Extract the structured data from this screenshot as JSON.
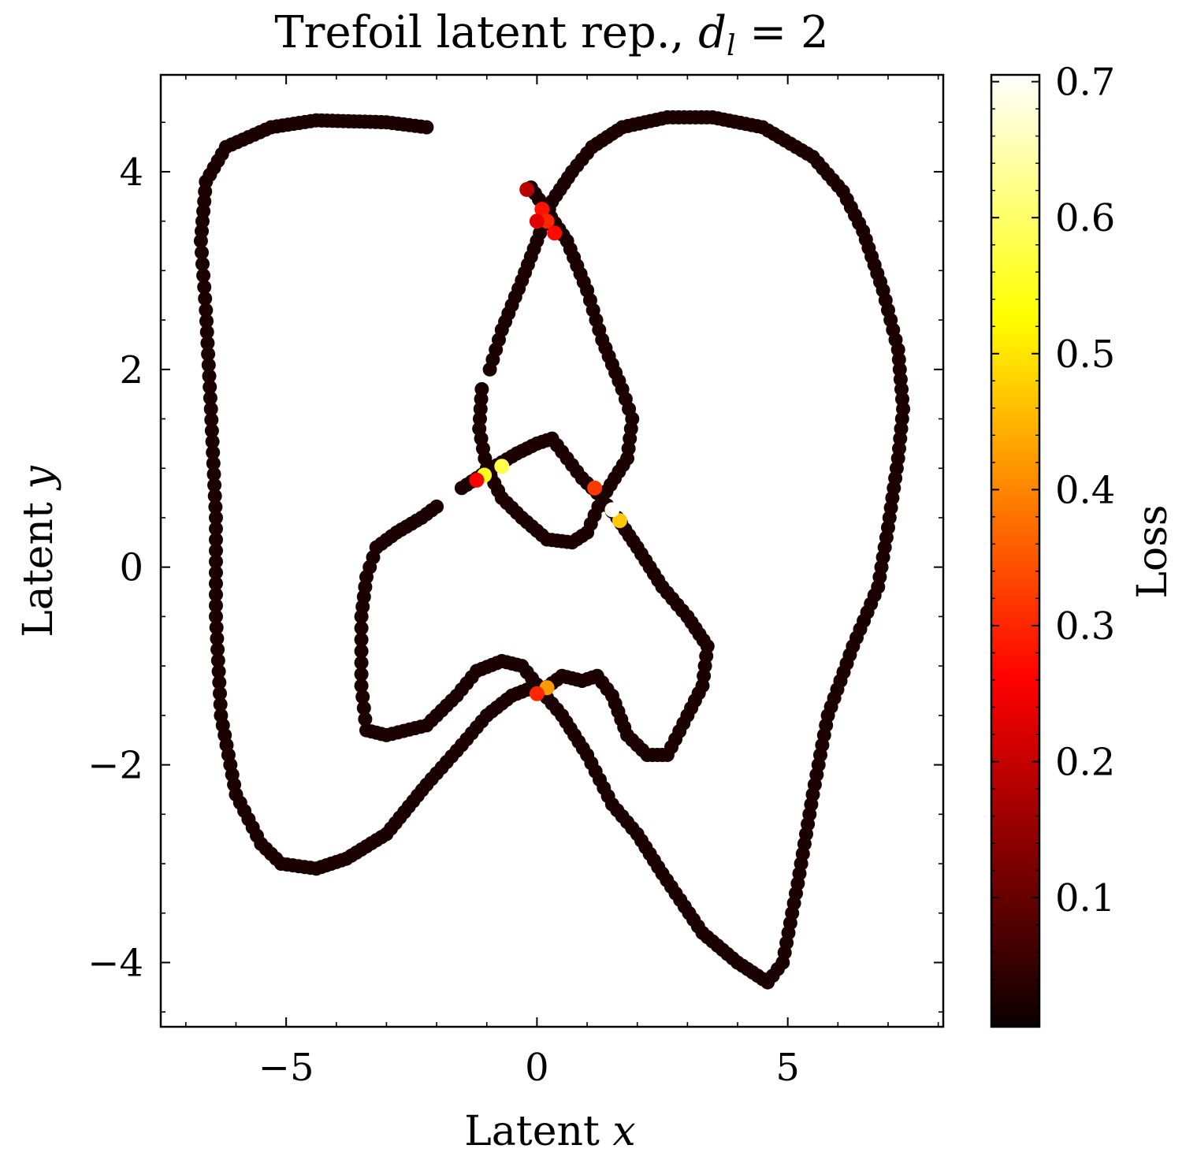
{
  "chart_data": {
    "type": "scatter",
    "title": "Trefoil latent rep., d_l = 2",
    "title_parts": {
      "main": "Trefoil latent rep., ",
      "var": "d",
      "sub": "l",
      "eq": " = 2"
    },
    "xlabel": "Latent x",
    "xlabel_parts": {
      "text": "Latent ",
      "var": "x"
    },
    "ylabel": "Latent y",
    "ylabel_parts": {
      "text": "Latent ",
      "var": "y"
    },
    "xlim": [
      -7.5,
      8.1
    ],
    "ylim": [
      -4.65,
      4.98
    ],
    "x_ticks": [
      {
        "value": -5,
        "label": "−5"
      },
      {
        "value": 0,
        "label": "0"
      },
      {
        "value": 5,
        "label": "5"
      }
    ],
    "y_ticks": [
      {
        "value": -4,
        "label": "−4"
      },
      {
        "value": -2,
        "label": "−2"
      },
      {
        "value": 0,
        "label": "0"
      },
      {
        "value": 2,
        "label": "2"
      },
      {
        "value": 4,
        "label": "4"
      }
    ],
    "grid": false,
    "colorbar": {
      "label": "Loss",
      "colormap": "hot",
      "range": [
        0.005,
        0.705
      ],
      "ticks": [
        {
          "value": 0.1,
          "label": "0.1"
        },
        {
          "value": 0.2,
          "label": "0.2"
        },
        {
          "value": 0.3,
          "label": "0.3"
        },
        {
          "value": 0.4,
          "label": "0.4"
        },
        {
          "value": 0.5,
          "label": "0.5"
        },
        {
          "value": 0.6,
          "label": "0.6"
        },
        {
          "value": 0.7,
          "label": "0.7"
        }
      ]
    },
    "curves": [
      {
        "part": "outer-loop",
        "points": [
          [
            -2.2,
            4.45
          ],
          [
            -3,
            4.5
          ],
          [
            -4.4,
            4.52
          ],
          [
            -5.3,
            4.45
          ],
          [
            -6.2,
            4.25
          ],
          [
            -6.6,
            3.9
          ],
          [
            -6.7,
            3.3
          ],
          [
            -6.6,
            2.6
          ],
          [
            -6.5,
            1.6
          ],
          [
            -6.4,
            0.5
          ],
          [
            -6.4,
            -0.5
          ],
          [
            -6.3,
            -1.5
          ],
          [
            -6.0,
            -2.3
          ],
          [
            -5.5,
            -2.8
          ],
          [
            -5.1,
            -3.0
          ],
          [
            -4.4,
            -3.05
          ],
          [
            -3.8,
            -2.95
          ],
          [
            -3.0,
            -2.7
          ],
          [
            -2.2,
            -2.2
          ],
          [
            -1.5,
            -1.8
          ],
          [
            -1.0,
            -1.5
          ],
          [
            -0.5,
            -1.3
          ],
          [
            0.0,
            -1.2
          ],
          [
            0.5,
            -1.5
          ],
          [
            1.0,
            -1.9
          ],
          [
            1.5,
            -2.4
          ],
          [
            2.0,
            -2.7
          ],
          [
            2.5,
            -3.1
          ],
          [
            3.3,
            -3.7
          ],
          [
            4.0,
            -4.0
          ],
          [
            4.6,
            -4.2
          ],
          [
            4.9,
            -4.0
          ],
          [
            5.2,
            -3.2
          ],
          [
            5.5,
            -2.3
          ],
          [
            5.8,
            -1.5
          ],
          [
            6.3,
            -0.8
          ],
          [
            6.8,
            -0.2
          ],
          [
            7.0,
            0.4
          ],
          [
            7.2,
            1.1
          ],
          [
            7.3,
            1.6
          ],
          [
            7.2,
            2.2
          ],
          [
            6.9,
            2.8
          ],
          [
            6.5,
            3.4
          ],
          [
            6.1,
            3.8
          ],
          [
            5.5,
            4.15
          ],
          [
            4.5,
            4.45
          ],
          [
            3.5,
            4.55
          ],
          [
            2.6,
            4.55
          ],
          [
            1.7,
            4.45
          ],
          [
            1.1,
            4.25
          ],
          [
            0.7,
            4.0
          ],
          [
            0.3,
            3.7
          ],
          [
            0.0,
            3.3
          ],
          [
            -0.3,
            2.9
          ],
          [
            -0.7,
            2.4
          ],
          [
            -1.0,
            1.9
          ]
        ]
      },
      {
        "part": "inner-loop",
        "points": [
          [
            -1.1,
            1.8
          ],
          [
            -1.15,
            1.4
          ],
          [
            -1.0,
            1.0
          ],
          [
            -0.7,
            0.7
          ],
          [
            -0.3,
            0.5
          ],
          [
            0.2,
            0.28
          ],
          [
            0.7,
            0.25
          ],
          [
            1.0,
            0.35
          ],
          [
            1.3,
            0.7
          ],
          [
            1.8,
            1.1
          ],
          [
            1.9,
            1.5
          ],
          [
            1.7,
            1.8
          ],
          [
            1.3,
            2.3
          ],
          [
            1.0,
            2.8
          ],
          [
            0.6,
            3.3
          ],
          [
            0.2,
            3.6
          ],
          [
            -0.2,
            3.9
          ]
        ]
      },
      {
        "part": "mid-arch",
        "points": [
          [
            -1.5,
            0.8
          ],
          [
            -0.9,
            1.0
          ],
          [
            -0.4,
            1.15
          ],
          [
            0.0,
            1.25
          ],
          [
            0.3,
            1.3
          ],
          [
            0.6,
            1.1
          ],
          [
            0.9,
            0.9
          ],
          [
            1.2,
            0.75
          ],
          [
            1.6,
            0.5
          ],
          [
            2.0,
            0.2
          ],
          [
            2.5,
            -0.2
          ],
          [
            3.0,
            -0.5
          ],
          [
            3.4,
            -0.8
          ],
          [
            3.3,
            -1.2
          ],
          [
            3.0,
            -1.5
          ],
          [
            2.6,
            -1.9
          ],
          [
            2.2,
            -1.9
          ],
          [
            1.8,
            -1.7
          ],
          [
            1.5,
            -1.3
          ],
          [
            1.2,
            -1.1
          ],
          [
            0.9,
            -1.15
          ],
          [
            0.5,
            -1.1
          ],
          [
            0.1,
            -1.25
          ],
          [
            -0.3,
            -1.0
          ],
          [
            -0.7,
            -0.95
          ],
          [
            -1.2,
            -1.05
          ],
          [
            -1.6,
            -1.3
          ],
          [
            -2.2,
            -1.6
          ],
          [
            -3.0,
            -1.7
          ],
          [
            -3.4,
            -1.65
          ],
          [
            -3.5,
            -1.2
          ],
          [
            -3.5,
            -0.5
          ],
          [
            -3.4,
            -0.1
          ],
          [
            -3.2,
            0.2
          ],
          [
            -2.8,
            0.35
          ],
          [
            -2.3,
            0.5
          ],
          [
            -1.9,
            0.65
          ]
        ]
      }
    ],
    "high_loss_points": [
      {
        "x": -1.05,
        "y": 0.93,
        "loss": 0.55
      },
      {
        "x": -0.7,
        "y": 1.02,
        "loss": 0.58
      },
      {
        "x": -1.2,
        "y": 0.88,
        "loss": 0.25
      },
      {
        "x": 1.15,
        "y": 0.8,
        "loss": 0.32
      },
      {
        "x": 1.65,
        "y": 0.47,
        "loss": 0.47
      },
      {
        "x": 1.5,
        "y": 0.58,
        "loss": 0.7
      },
      {
        "x": 0.2,
        "y": -1.22,
        "loss": 0.42
      },
      {
        "x": 0.0,
        "y": -1.28,
        "loss": 0.3
      },
      {
        "x": 0.1,
        "y": 3.62,
        "loss": 0.28
      },
      {
        "x": 0.2,
        "y": 3.5,
        "loss": 0.3
      },
      {
        "x": 0.35,
        "y": 3.38,
        "loss": 0.27
      },
      {
        "x": 0.0,
        "y": 3.5,
        "loss": 0.22
      },
      {
        "x": -0.2,
        "y": 3.82,
        "loss": 0.18
      }
    ]
  }
}
